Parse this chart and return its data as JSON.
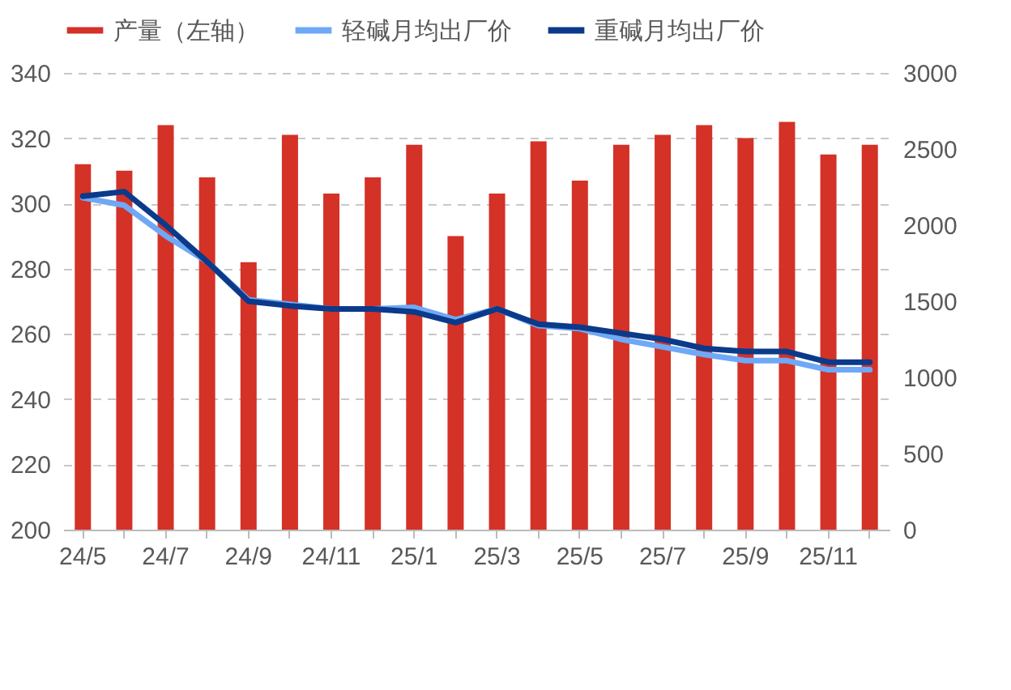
{
  "chart_data": {
    "type": "bar",
    "categories": [
      "24/5",
      null,
      "24/7",
      null,
      "24/9",
      null,
      "24/11",
      null,
      "25/1",
      null,
      "25/3",
      null,
      "25/5",
      null,
      "25/7",
      null,
      "25/9",
      null,
      "25/11",
      null
    ],
    "series": [
      {
        "name": "产量（左轴）",
        "color": "#d43127",
        "values": [
          312,
          310,
          324,
          308,
          282,
          321,
          303,
          308,
          318,
          290,
          303,
          319,
          307,
          318,
          321,
          324,
          320,
          325,
          315,
          318
        ]
      },
      {
        "name": "轻碱月均出厂价",
        "type": "line",
        "axis": "y2",
        "color": "#6fa8f5",
        "values": [
          2180,
          2130,
          1930,
          1760,
          1510,
          1480,
          1450,
          1450,
          1460,
          1380,
          1450,
          1340,
          1320,
          1250,
          1200,
          1150,
          1110,
          1110,
          1050,
          1050
        ]
      },
      {
        "name": "重碱月均出厂价",
        "type": "line",
        "axis": "y2",
        "color": "#0b3a8a",
        "values": [
          2190,
          2220,
          2000,
          1760,
          1500,
          1470,
          1450,
          1450,
          1430,
          1360,
          1450,
          1350,
          1330,
          1290,
          1250,
          1190,
          1170,
          1170,
          1100,
          1100
        ]
      }
    ],
    "ylim": [
      200,
      340
    ],
    "yticks": [
      200,
      220,
      240,
      260,
      280,
      300,
      320,
      340
    ],
    "y2lim": [
      0,
      3000
    ],
    "y2ticks": [
      0,
      500,
      1000,
      1500,
      2000,
      2500,
      3000
    ],
    "grid": "y",
    "legend": "top"
  }
}
